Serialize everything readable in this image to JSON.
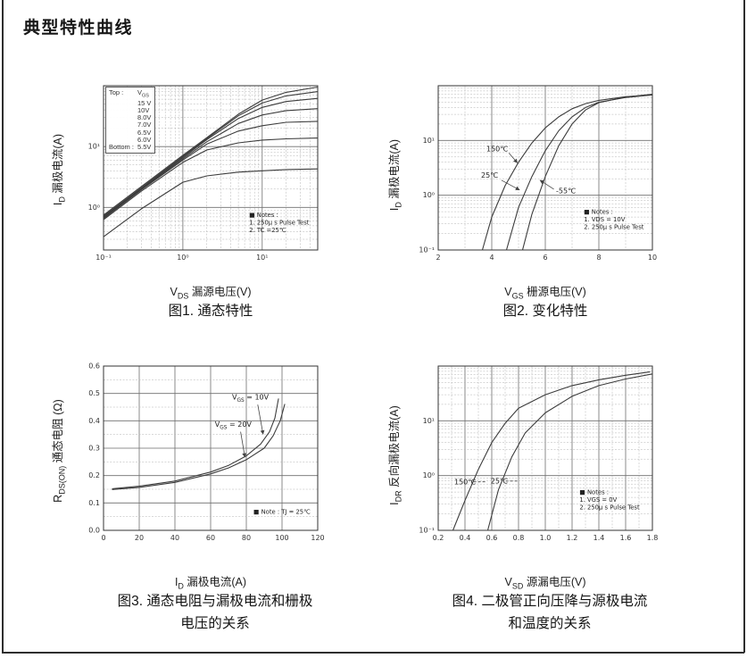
{
  "page": {
    "title": "典型特性曲线"
  },
  "figures": [
    {
      "caption1": "图1. 通态特性",
      "caption2": "",
      "xlabel": {
        "pre": "V",
        "sub": "DS",
        "post": " 漏源电压(V)"
      },
      "ylabel": {
        "pre": "I",
        "sub": "D",
        "post": " 漏极电流(A)"
      }
    },
    {
      "caption1": "图2. 变化特性",
      "caption2": "",
      "xlabel": {
        "pre": "V",
        "sub": "GS",
        "post": " 栅源电压(V)"
      },
      "ylabel": {
        "pre": "I",
        "sub": "D",
        "post": " 漏极电流(A)"
      }
    },
    {
      "caption1": "图3. 通态电阻与漏极电流和栅极",
      "caption2": "电压的关系",
      "xlabel": {
        "pre": "I",
        "sub": "D",
        "post": " 漏极电流(A)"
      },
      "ylabel": {
        "pre": "R",
        "sub": "DS(ON)",
        "post": " 通态电阻 (Ω)"
      }
    },
    {
      "caption1": "图4. 二极管正向压降与源极电流",
      "caption2": "和温度的关系",
      "xlabel": {
        "pre": "V",
        "sub": "SD",
        "post": " 源漏电压(V)"
      },
      "ylabel": {
        "pre": "I",
        "sub": "DR",
        "post": " 反向漏极电流(A)"
      }
    }
  ],
  "chart_data": [
    {
      "type": "line",
      "title": "图1. 通态特性",
      "xlabel": "VDS 漏源电压(V)",
      "ylabel": "ID 漏极电流(A)",
      "xscale": "log",
      "yscale": "log",
      "xlim": [
        0.1,
        50
      ],
      "ylim": [
        0.2,
        100
      ],
      "x_ticks": [
        {
          "v": 0.1,
          "label": "10⁻¹"
        },
        {
          "v": 1,
          "label": "10⁰"
        },
        {
          "v": 10,
          "label": "10¹"
        }
      ],
      "y_ticks": [
        {
          "v": 1,
          "label": "10⁰"
        },
        {
          "v": 10,
          "label": "10¹"
        }
      ],
      "legend": {
        "top_label": "Top :",
        "header_pre": "V",
        "header_sub": "GS",
        "top_values": [
          "15 V",
          "10V",
          "8.0V",
          "7.0V",
          "6.5V",
          "6.0V"
        ],
        "bottom_label": "Bottom :",
        "bottom_value": "5.5V"
      },
      "series": [
        {
          "name": "VGS=15V",
          "points": [
            [
              0.1,
              0.75
            ],
            [
              0.3,
              2.2
            ],
            [
              1,
              7.2
            ],
            [
              2,
              14
            ],
            [
              5,
              34
            ],
            [
              10,
              58
            ],
            [
              20,
              78
            ],
            [
              50,
              95
            ]
          ]
        },
        {
          "name": "VGS=10V",
          "points": [
            [
              0.1,
              0.72
            ],
            [
              0.3,
              2.1
            ],
            [
              1,
              6.9
            ],
            [
              2,
              13.5
            ],
            [
              5,
              32
            ],
            [
              10,
              52
            ],
            [
              20,
              68
            ],
            [
              50,
              80
            ]
          ]
        },
        {
          "name": "VGS=8.0V",
          "points": [
            [
              0.1,
              0.7
            ],
            [
              0.3,
              2.05
            ],
            [
              1,
              6.6
            ],
            [
              2,
              13
            ],
            [
              5,
              29
            ],
            [
              10,
              44
            ],
            [
              20,
              55
            ],
            [
              50,
              62
            ]
          ]
        },
        {
          "name": "VGS=7.0V",
          "points": [
            [
              0.1,
              0.68
            ],
            [
              0.3,
              2.0
            ],
            [
              1,
              6.3
            ],
            [
              2,
              12
            ],
            [
              5,
              24
            ],
            [
              10,
              33
            ],
            [
              20,
              39
            ],
            [
              50,
              42
            ]
          ]
        },
        {
          "name": "VGS=6.5V",
          "points": [
            [
              0.1,
              0.66
            ],
            [
              0.3,
              1.95
            ],
            [
              1,
              6.0
            ],
            [
              2,
              11
            ],
            [
              5,
              18
            ],
            [
              10,
              22
            ],
            [
              20,
              25
            ],
            [
              50,
              26
            ]
          ]
        },
        {
          "name": "VGS=6.0V",
          "points": [
            [
              0.1,
              0.63
            ],
            [
              0.3,
              1.85
            ],
            [
              1,
              5.5
            ],
            [
              2,
              8.8
            ],
            [
              5,
              11.5
            ],
            [
              10,
              12.8
            ],
            [
              20,
              13.4
            ],
            [
              50,
              13.8
            ]
          ]
        },
        {
          "name": "VGS=5.5V",
          "points": [
            [
              0.1,
              0.33
            ],
            [
              0.3,
              0.95
            ],
            [
              1,
              2.6
            ],
            [
              2,
              3.3
            ],
            [
              5,
              3.8
            ],
            [
              10,
              4.0
            ],
            [
              20,
              4.2
            ],
            [
              50,
              4.3
            ]
          ]
        }
      ],
      "annotations": [],
      "leaders": [],
      "notes": {
        "fx": 0.68,
        "fy": 0.8,
        "lines": [
          "■ Notes :",
          "1. 250μ s Pulse Test",
          "2. TC =25℃"
        ]
      }
    },
    {
      "type": "line",
      "title": "图2. 变化特性",
      "xlabel": "VGS 栅源电压(V)",
      "ylabel": "ID 漏极电流(A)",
      "xscale": "linear",
      "yscale": "log",
      "xlim": [
        2,
        10
      ],
      "ylim": [
        0.1,
        100
      ],
      "x_grid": {
        "minor": 1,
        "major": 2
      },
      "x_ticks": [
        {
          "v": 2,
          "label": "2"
        },
        {
          "v": 4,
          "label": "4"
        },
        {
          "v": 6,
          "label": "6"
        },
        {
          "v": 8,
          "label": "8"
        },
        {
          "v": 10,
          "label": "10"
        }
      ],
      "y_ticks": [
        {
          "v": 0.1,
          "label": "10⁻¹"
        },
        {
          "v": 1,
          "label": "10⁰"
        },
        {
          "v": 10,
          "label": "10¹"
        }
      ],
      "series": [
        {
          "name": "150℃",
          "points": [
            [
              3.65,
              0.1
            ],
            [
              4,
              0.4
            ],
            [
              4.5,
              1.5
            ],
            [
              5,
              4
            ],
            [
              5.5,
              9
            ],
            [
              6,
              17
            ],
            [
              6.5,
              27
            ],
            [
              7,
              38
            ],
            [
              7.5,
              47
            ],
            [
              8,
              54
            ],
            [
              9,
              63
            ],
            [
              10,
              68
            ]
          ]
        },
        {
          "name": "25℃",
          "points": [
            [
              4.55,
              0.1
            ],
            [
              5,
              0.6
            ],
            [
              5.5,
              2.2
            ],
            [
              6,
              6.5
            ],
            [
              6.5,
              15
            ],
            [
              7,
              27
            ],
            [
              7.5,
              40
            ],
            [
              8,
              50
            ],
            [
              9,
              61
            ],
            [
              10,
              68
            ]
          ]
        },
        {
          "name": "-55℃",
          "points": [
            [
              5.15,
              0.1
            ],
            [
              5.5,
              0.45
            ],
            [
              6,
              2.2
            ],
            [
              6.5,
              8
            ],
            [
              7,
              20
            ],
            [
              7.5,
              36
            ],
            [
              8,
              49
            ],
            [
              9,
              62
            ],
            [
              10,
              70
            ]
          ]
        }
      ],
      "annotations": [
        {
          "text": "150℃",
          "fx": 0.225,
          "fy": 0.4,
          "anchor": "start"
        },
        {
          "text": "25℃",
          "fx": 0.2,
          "fy": 0.56,
          "anchor": "start"
        },
        {
          "text": "-55℃",
          "fx": 0.55,
          "fy": 0.655,
          "anchor": "start"
        }
      ],
      "leaders": [
        {
          "x1": 0.33,
          "y1": 0.41,
          "x2": 0.37,
          "y2": 0.47,
          "arrow": true
        },
        {
          "x1": 0.295,
          "y1": 0.575,
          "x2": 0.38,
          "y2": 0.635,
          "arrow": true
        },
        {
          "x1": 0.54,
          "y1": 0.63,
          "x2": 0.475,
          "y2": 0.575,
          "arrow": true
        }
      ],
      "notes": {
        "fx": 0.68,
        "fy": 0.78,
        "lines": [
          "■ Notes :",
          "1. VDS = 10V",
          "2. 250μ s Pulse Test"
        ]
      }
    },
    {
      "type": "line",
      "title": "图3. 通态电阻与漏极电流和栅极电压的关系",
      "xlabel": "ID 漏极电流(A)",
      "ylabel": "RDS(ON) 通态电阻 (Ω)",
      "xscale": "linear",
      "yscale": "linear",
      "xlim": [
        0,
        120
      ],
      "ylim": [
        0,
        0.6
      ],
      "x_grid": {
        "minor": 20,
        "major": 20
      },
      "y_grid": {
        "minor": 0.05,
        "major": 0.1
      },
      "x_ticks": [
        {
          "v": 0,
          "label": "0"
        },
        {
          "v": 20,
          "label": "20"
        },
        {
          "v": 40,
          "label": "40"
        },
        {
          "v": 60,
          "label": "60"
        },
        {
          "v": 80,
          "label": "80"
        },
        {
          "v": 100,
          "label": "100"
        },
        {
          "v": 120,
          "label": "120"
        }
      ],
      "y_ticks": [
        {
          "v": 0,
          "label": "0.0"
        },
        {
          "v": 0.1,
          "label": "0.1"
        },
        {
          "v": 0.2,
          "label": "0.2"
        },
        {
          "v": 0.3,
          "label": "0.3"
        },
        {
          "v": 0.4,
          "label": "0.4"
        },
        {
          "v": 0.5,
          "label": "0.5"
        },
        {
          "v": 0.6,
          "label": "0.6"
        }
      ],
      "series": [
        {
          "name": "VGS = 10V",
          "points": [
            [
              5,
              0.152
            ],
            [
              20,
              0.161
            ],
            [
              40,
              0.18
            ],
            [
              60,
              0.213
            ],
            [
              70,
              0.237
            ],
            [
              80,
              0.272
            ],
            [
              88,
              0.315
            ],
            [
              93,
              0.36
            ],
            [
              96,
              0.41
            ],
            [
              98,
              0.48
            ]
          ]
        },
        {
          "name": "VGS = 20V",
          "points": [
            [
              5,
              0.149
            ],
            [
              20,
              0.157
            ],
            [
              40,
              0.175
            ],
            [
              60,
              0.206
            ],
            [
              70,
              0.228
            ],
            [
              80,
              0.258
            ],
            [
              90,
              0.3
            ],
            [
              95,
              0.345
            ],
            [
              99,
              0.4
            ],
            [
              101.5,
              0.46
            ]
          ]
        }
      ],
      "annotations": [
        {
          "pre": "V",
          "sub": "GS",
          "post": " = 10V",
          "fx": 0.6,
          "fy": 0.205
        },
        {
          "pre": "V",
          "sub": "GS",
          "post": " = 20V",
          "fx": 0.52,
          "fy": 0.37
        }
      ],
      "leaders": [
        {
          "x1": 0.72,
          "y1": 0.235,
          "x2": 0.745,
          "y2": 0.415,
          "arrow": true
        },
        {
          "x1": 0.64,
          "y1": 0.4,
          "x2": 0.66,
          "y2": 0.555,
          "arrow": true
        }
      ],
      "notes": {
        "fx": 0.7,
        "fy": 0.9,
        "lines": [
          "■ Note : TJ = 25℃"
        ]
      }
    },
    {
      "type": "line",
      "title": "图4. 二极管正向压降与源极电流和温度的关系",
      "xlabel": "VSD 源漏电压(V)",
      "ylabel": "IDR 反向漏极电流(A)",
      "xscale": "linear",
      "yscale": "log",
      "xlim": [
        0.2,
        1.8
      ],
      "ylim": [
        0.1,
        100
      ],
      "x_grid": {
        "minor": 0.1,
        "major": 0.2
      },
      "x_ticks": [
        {
          "v": 0.2,
          "label": "0.2"
        },
        {
          "v": 0.4,
          "label": "0.4"
        },
        {
          "v": 0.6,
          "label": "0.6"
        },
        {
          "v": 0.8,
          "label": "0.8"
        },
        {
          "v": 1.0,
          "label": "1.0"
        },
        {
          "v": 1.2,
          "label": "1.2"
        },
        {
          "v": 1.4,
          "label": "1.4"
        },
        {
          "v": 1.6,
          "label": "1.6"
        },
        {
          "v": 1.8,
          "label": "1.8"
        }
      ],
      "y_ticks": [
        {
          "v": 0.1,
          "label": "10⁻¹"
        },
        {
          "v": 1,
          "label": "10⁰"
        },
        {
          "v": 10,
          "label": "10¹"
        }
      ],
      "series": [
        {
          "name": "150℃",
          "points": [
            [
              0.31,
              0.1
            ],
            [
              0.4,
              0.35
            ],
            [
              0.5,
              1.3
            ],
            [
              0.6,
              4
            ],
            [
              0.7,
              9
            ],
            [
              0.8,
              17
            ],
            [
              1.0,
              30
            ],
            [
              1.2,
              44
            ],
            [
              1.4,
              56
            ],
            [
              1.6,
              68
            ],
            [
              1.78,
              78
            ]
          ]
        },
        {
          "name": "25℃",
          "points": [
            [
              0.57,
              0.1
            ],
            [
              0.65,
              0.55
            ],
            [
              0.75,
              2.2
            ],
            [
              0.85,
              6
            ],
            [
              1.0,
              14
            ],
            [
              1.2,
              28
            ],
            [
              1.4,
              44
            ],
            [
              1.6,
              58
            ],
            [
              1.8,
              72
            ]
          ]
        }
      ],
      "annotations": [
        {
          "text": "150℃",
          "fx": 0.075,
          "fy": 0.72,
          "anchor": "start"
        },
        {
          "text": "25℃",
          "fx": 0.245,
          "fy": 0.715,
          "anchor": "start"
        }
      ],
      "leaders": [
        {
          "x1": 0.165,
          "y1": 0.705,
          "x2": 0.225,
          "y2": 0.705,
          "dashed": true
        },
        {
          "x1": 0.315,
          "y1": 0.7,
          "x2": 0.375,
          "y2": 0.7,
          "dashed": true
        }
      ],
      "notes": {
        "fx": 0.66,
        "fy": 0.78,
        "lines": [
          "■ Notes :",
          "1. VGS = 0V",
          "2. 250μ s Pulse Test"
        ]
      }
    }
  ]
}
